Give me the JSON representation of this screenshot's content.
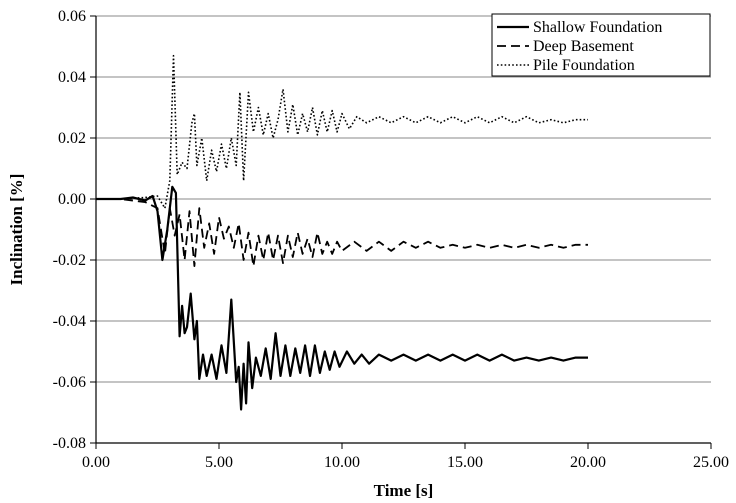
{
  "chart_data": {
    "type": "line",
    "title": "",
    "xlabel": "Time [s]",
    "ylabel": "Inclination [%]",
    "xlim": [
      0,
      25
    ],
    "ylim": [
      -0.08,
      0.06
    ],
    "x_ticks": [
      0,
      5,
      10,
      15,
      20,
      25
    ],
    "x_tick_labels": [
      "0.00",
      "5.00",
      "10.00",
      "15.00",
      "20.00",
      "25.00"
    ],
    "y_ticks": [
      0.06,
      0.04,
      0.02,
      0.0,
      -0.02,
      -0.04,
      -0.06,
      -0.08
    ],
    "y_tick_labels": [
      "0.06",
      "0.04",
      "0.02",
      "0.00",
      "-0.02",
      "-0.04",
      "-0.06",
      "-0.08"
    ],
    "grid": "horizontal",
    "legend": "top-right",
    "series": [
      {
        "name": "Shallow Foundation",
        "style": "solid",
        "x": [
          0,
          1,
          1.5,
          2,
          2.3,
          2.5,
          2.7,
          2.9,
          3.1,
          3.25,
          3.4,
          3.5,
          3.6,
          3.7,
          3.85,
          4.0,
          4.1,
          4.2,
          4.35,
          4.5,
          4.7,
          4.9,
          5.1,
          5.3,
          5.5,
          5.7,
          5.8,
          5.9,
          6.0,
          6.1,
          6.2,
          6.35,
          6.5,
          6.7,
          6.9,
          7.1,
          7.3,
          7.5,
          7.7,
          7.9,
          8.1,
          8.3,
          8.5,
          8.7,
          8.9,
          9.1,
          9.3,
          9.5,
          9.7,
          9.9,
          10.2,
          10.5,
          10.8,
          11.1,
          11.5,
          12,
          12.5,
          13,
          13.5,
          14,
          14.5,
          15,
          15.5,
          16,
          16.5,
          17,
          17.5,
          18,
          18.5,
          19,
          19.5,
          20
        ],
        "y": [
          0,
          0,
          0.0005,
          -0.0005,
          0.001,
          -0.004,
          -0.02,
          -0.01,
          0.004,
          0.002,
          -0.045,
          -0.035,
          -0.044,
          -0.042,
          -0.031,
          -0.046,
          -0.04,
          -0.059,
          -0.051,
          -0.058,
          -0.051,
          -0.059,
          -0.048,
          -0.057,
          -0.033,
          -0.06,
          -0.055,
          -0.069,
          -0.054,
          -0.067,
          -0.047,
          -0.062,
          -0.052,
          -0.058,
          -0.049,
          -0.059,
          -0.044,
          -0.058,
          -0.048,
          -0.058,
          -0.049,
          -0.057,
          -0.048,
          -0.058,
          -0.048,
          -0.057,
          -0.05,
          -0.056,
          -0.05,
          -0.055,
          -0.05,
          -0.054,
          -0.051,
          -0.054,
          -0.051,
          -0.053,
          -0.051,
          -0.053,
          -0.051,
          -0.053,
          -0.051,
          -0.053,
          -0.051,
          -0.053,
          -0.051,
          -0.053,
          -0.052,
          -0.053,
          -0.052,
          -0.053,
          -0.052,
          -0.052
        ]
      },
      {
        "name": "Deep Basement",
        "style": "dashed",
        "x": [
          0,
          1,
          2,
          2.5,
          2.8,
          3.0,
          3.2,
          3.4,
          3.6,
          3.8,
          4.0,
          4.2,
          4.4,
          4.6,
          4.8,
          5.0,
          5.2,
          5.4,
          5.6,
          5.8,
          6.0,
          6.2,
          6.4,
          6.6,
          6.8,
          7.0,
          7.2,
          7.4,
          7.6,
          7.8,
          8.0,
          8.2,
          8.4,
          8.6,
          8.8,
          9.0,
          9.2,
          9.4,
          9.6,
          9.8,
          10.0,
          10.5,
          11,
          11.5,
          12,
          12.5,
          13,
          13.5,
          14,
          14.5,
          15,
          15.5,
          16,
          16.5,
          17,
          17.5,
          18,
          18.5,
          19,
          19.5,
          20
        ],
        "y": [
          0,
          0,
          -0.001,
          -0.003,
          -0.018,
          -0.003,
          -0.012,
          -0.005,
          -0.02,
          -0.004,
          -0.022,
          -0.003,
          -0.016,
          -0.008,
          -0.018,
          -0.006,
          -0.013,
          -0.009,
          -0.016,
          -0.008,
          -0.02,
          -0.011,
          -0.022,
          -0.012,
          -0.02,
          -0.011,
          -0.02,
          -0.012,
          -0.021,
          -0.012,
          -0.019,
          -0.011,
          -0.018,
          -0.013,
          -0.019,
          -0.011,
          -0.018,
          -0.014,
          -0.018,
          -0.014,
          -0.017,
          -0.014,
          -0.017,
          -0.014,
          -0.017,
          -0.014,
          -0.016,
          -0.014,
          -0.016,
          -0.015,
          -0.016,
          -0.015,
          -0.016,
          -0.015,
          -0.016,
          -0.015,
          -0.016,
          -0.015,
          -0.016,
          -0.015,
          -0.015
        ]
      },
      {
        "name": "Pile Foundation",
        "style": "dotted",
        "x": [
          0,
          1,
          2,
          2.5,
          2.8,
          3.0,
          3.15,
          3.3,
          3.5,
          3.7,
          3.9,
          4.0,
          4.1,
          4.3,
          4.5,
          4.7,
          4.9,
          5.1,
          5.3,
          5.5,
          5.7,
          5.85,
          6.0,
          6.2,
          6.4,
          6.6,
          6.8,
          7.0,
          7.2,
          7.4,
          7.6,
          7.8,
          8.0,
          8.2,
          8.4,
          8.6,
          8.8,
          9.0,
          9.2,
          9.4,
          9.6,
          9.8,
          10.0,
          10.3,
          10.6,
          11,
          11.5,
          12,
          12.5,
          13,
          13.5,
          14,
          14.5,
          15,
          15.5,
          16,
          16.5,
          17,
          17.5,
          18,
          18.5,
          19,
          19.5,
          20
        ],
        "y": [
          0,
          0,
          0.0005,
          0.001,
          -0.003,
          0.006,
          0.047,
          0.008,
          0.012,
          0.01,
          0.025,
          0.028,
          0.011,
          0.02,
          0.006,
          0.016,
          0.009,
          0.018,
          0.01,
          0.02,
          0.011,
          0.035,
          0.006,
          0.035,
          0.022,
          0.03,
          0.021,
          0.028,
          0.02,
          0.026,
          0.036,
          0.022,
          0.031,
          0.021,
          0.028,
          0.022,
          0.03,
          0.021,
          0.029,
          0.022,
          0.029,
          0.022,
          0.028,
          0.023,
          0.027,
          0.025,
          0.027,
          0.025,
          0.027,
          0.025,
          0.027,
          0.025,
          0.027,
          0.025,
          0.027,
          0.025,
          0.027,
          0.025,
          0.027,
          0.025,
          0.026,
          0.025,
          0.026,
          0.026
        ]
      }
    ]
  }
}
